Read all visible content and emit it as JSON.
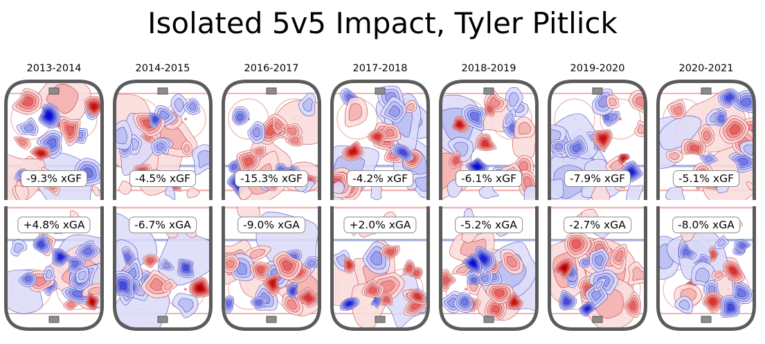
{
  "title": "Isolated 5v5 Impact, Tyler Pitlick",
  "rows": {
    "top_metric": "xGF",
    "bottom_metric": "xGA"
  },
  "columns": [
    {
      "season": "2013-2014",
      "xgf_label": "-9.3% xGF",
      "xga_label": "+4.8% xGA"
    },
    {
      "season": "2014-2015",
      "xgf_label": "-4.5% xGF",
      "xga_label": "-6.7% xGA"
    },
    {
      "season": "2016-2017",
      "xgf_label": "-15.3% xGF",
      "xga_label": "-9.0% xGA"
    },
    {
      "season": "2017-2018",
      "xgf_label": "-4.2% xGF",
      "xga_label": "+2.0% xGA"
    },
    {
      "season": "2018-2019",
      "xgf_label": "-6.1% xGF",
      "xga_label": "-5.2% xGA"
    },
    {
      "season": "2019-2020",
      "xgf_label": "-7.9% xGF",
      "xga_label": "-2.7% xGA"
    },
    {
      "season": "2020-2021",
      "xgf_label": "-5.1% xGF",
      "xga_label": "-8.0% xGA"
    }
  ],
  "colors": {
    "rink_border": "#5b5b5b",
    "blue_line": "#a9b3e2",
    "red_line": "#f2a8a8",
    "faceoff_circle": "#f3bcbc",
    "goal_fill": "#8c8c8c",
    "goal_stroke": "#555555",
    "heat_red_deep": "#cc0000",
    "heat_blue_deep": "#0a0aee",
    "heat_red_pale": "#fadcdc",
    "heat_blue_pale": "#dcdcf8",
    "label_box_border": "#8a8a8a"
  },
  "chart_data": {
    "type": "heatmap",
    "title": "Isolated 5v5 Impact, Tyler Pitlick",
    "description_visible": "Grid of 7 seasons x 2 half-rink KDE contour maps (red = more expected goals, blue = fewer), offensive zone (xGF) on top row, defensive zone (xGA) on bottom row",
    "categories": [
      "2013-2014",
      "2014-2015",
      "2016-2017",
      "2017-2018",
      "2018-2019",
      "2019-2020",
      "2020-2021"
    ],
    "series": [
      {
        "name": "xGF impact (%)",
        "values": [
          -9.3,
          -4.5,
          -15.3,
          -4.2,
          -6.1,
          -7.9,
          -5.1
        ]
      },
      {
        "name": "xGA impact (%)",
        "values": [
          4.8,
          -6.7,
          -9.0,
          2.0,
          -5.2,
          -2.7,
          -8.0
        ]
      }
    ],
    "legend_position": "none",
    "grid": false
  }
}
